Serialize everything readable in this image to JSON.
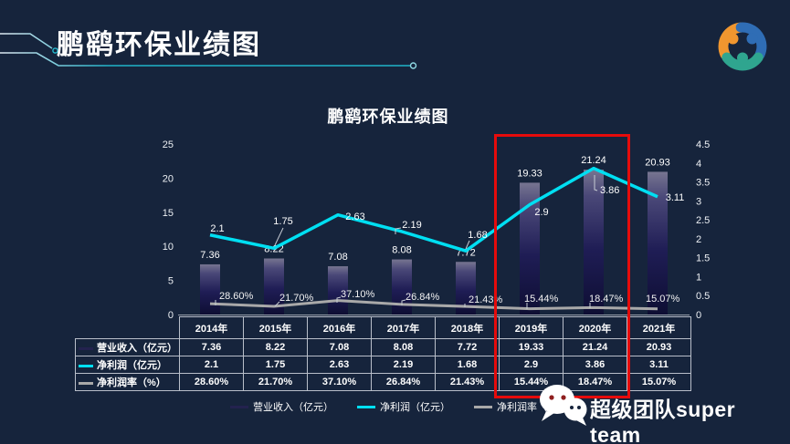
{
  "page": {
    "background": "#16243c",
    "accent_teal": "#25b7cd",
    "highlight_red": "#e60b0b"
  },
  "header": {
    "title": "鹏鹞环保业绩图"
  },
  "logo": {
    "label": "company-logo",
    "colors": {
      "orange": "#f0962f",
      "blue": "#2f6db5",
      "teal": "#2fa58f"
    }
  },
  "chart_data": {
    "type": "bar+line combo",
    "title": "鹏鹞环保业绩图",
    "categories": [
      "2014年",
      "2015年",
      "2016年",
      "2017年",
      "2018年",
      "2019年",
      "2020年",
      "2021年"
    ],
    "series": [
      {
        "name": "营业收入（亿元）",
        "type": "bar",
        "axis": "left",
        "values": [
          7.36,
          8.22,
          7.08,
          8.08,
          7.72,
          19.33,
          21.24,
          20.93
        ],
        "labels": [
          "7.36",
          "8.22",
          "7.08",
          "8.08",
          "7.72",
          "19.33",
          "21.24",
          "20.93"
        ],
        "color": "#23224f"
      },
      {
        "name": "净利润（亿元）",
        "type": "line",
        "axis": "right",
        "values": [
          2.1,
          1.75,
          2.63,
          2.19,
          1.68,
          2.9,
          3.86,
          3.11
        ],
        "labels": [
          "2.1",
          "1.75",
          "2.63",
          "2.19",
          "1.68",
          "2.9",
          "3.86",
          "3.11"
        ],
        "color": "#00dff2"
      },
      {
        "name": "净利润率（%）",
        "type": "line",
        "axis": "right",
        "values": [
          0.286,
          0.217,
          0.371,
          0.2684,
          0.2143,
          0.1544,
          0.1847,
          0.1507
        ],
        "labels": [
          "28.60%",
          "21.70%",
          "37.10%",
          "26.84%",
          "21.43%",
          "15.44%",
          "18.47%",
          "15.07%"
        ],
        "color": "#a9a9a9"
      }
    ],
    "left_axis": {
      "min": 0,
      "max": 25,
      "step": 5,
      "ticks": [
        "0",
        "5",
        "10",
        "15",
        "20",
        "25"
      ]
    },
    "right_axis": {
      "min": 0,
      "max": 4.5,
      "step": 0.5,
      "ticks": [
        "0",
        "0.5",
        "1",
        "1.5",
        "2",
        "2.5",
        "3",
        "3.5",
        "4",
        "4.5"
      ]
    },
    "grid": false,
    "legend_position": "bottom",
    "highlight": {
      "from_category": "2019年",
      "to_category": "2020年",
      "color": "#e60b0b"
    }
  },
  "branding": {
    "team_name": "超级团队super team",
    "icon": "wechat-icon"
  }
}
